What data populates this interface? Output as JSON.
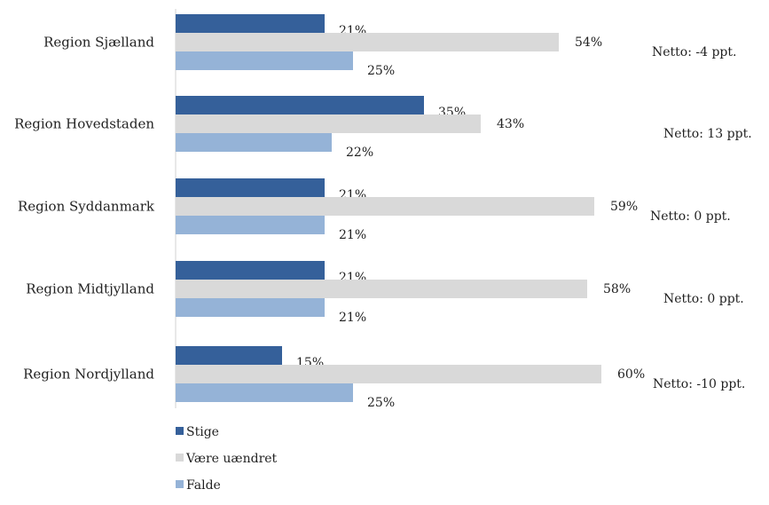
{
  "chart_data": {
    "type": "bar",
    "orientation": "horizontal",
    "categories": [
      "Region Sjælland",
      "Region Hovedstaden",
      "Region Syddanmark",
      "Region Midtjylland",
      "Region Nordjylland"
    ],
    "series": [
      {
        "name": "Stige",
        "color": "#35609a",
        "values": [
          21,
          35,
          21,
          21,
          15
        ],
        "labels": [
          "21%",
          "35%",
          "21%",
          "21%",
          "15%"
        ]
      },
      {
        "name": "Være uændret",
        "color": "#d9d9d9",
        "values": [
          54,
          43,
          59,
          58,
          60
        ],
        "labels": [
          "54%",
          "43%",
          "59%",
          "58%",
          "60%"
        ]
      },
      {
        "name": "Falde",
        "color": "#95b3d7",
        "values": [
          25,
          22,
          21,
          21,
          25
        ],
        "labels": [
          "25%",
          "22%",
          "21%",
          "21%",
          "25%"
        ]
      }
    ],
    "netto": [
      "Netto: -4 ppt.",
      "Netto:  13 ppt.",
      "Netto: 0 ppt.",
      "Netto:  0 ppt.",
      "Netto: -10 ppt."
    ],
    "xlim": [
      0,
      100
    ],
    "grid": false,
    "legend_position": "bottom-left",
    "title": "",
    "xlabel": "",
    "ylabel": ""
  }
}
